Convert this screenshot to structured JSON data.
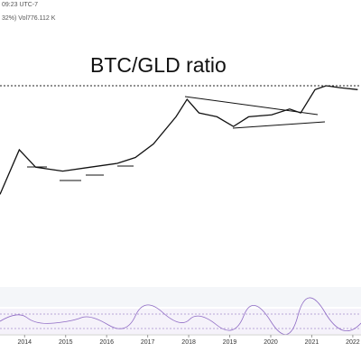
{
  "header": {
    "time": "09:23 UTC-7",
    "stats": "32%) Vol776.112 K"
  },
  "chart_data": {
    "type": "line",
    "title": "BTC/GLD ratio",
    "series": [
      {
        "color": "#111111",
        "x": [
          2013.4,
          2013.87,
          2014.27,
          2014.93,
          2015.59,
          2016.26,
          2016.7,
          2017.14,
          2017.69,
          2017.96,
          2018.25,
          2018.69,
          2019.09,
          2019.46,
          2020.02,
          2020.46,
          2020.73,
          2021.08,
          2021.35,
          2021.68,
          2022.12
        ],
        "values": [
          44,
          67,
          58,
          56,
          58,
          60,
          63,
          70,
          84,
          93,
          86,
          84,
          79,
          84,
          85,
          88,
          86,
          98,
          100,
          99,
          98
        ]
      }
    ],
    "xlim": [
      2013.4,
      2022.2
    ],
    "xticks": [
      2014,
      2015,
      2016,
      2017,
      2018,
      2019,
      2020,
      2021,
      2022
    ],
    "ylim": [
      0,
      100
    ]
  }
}
